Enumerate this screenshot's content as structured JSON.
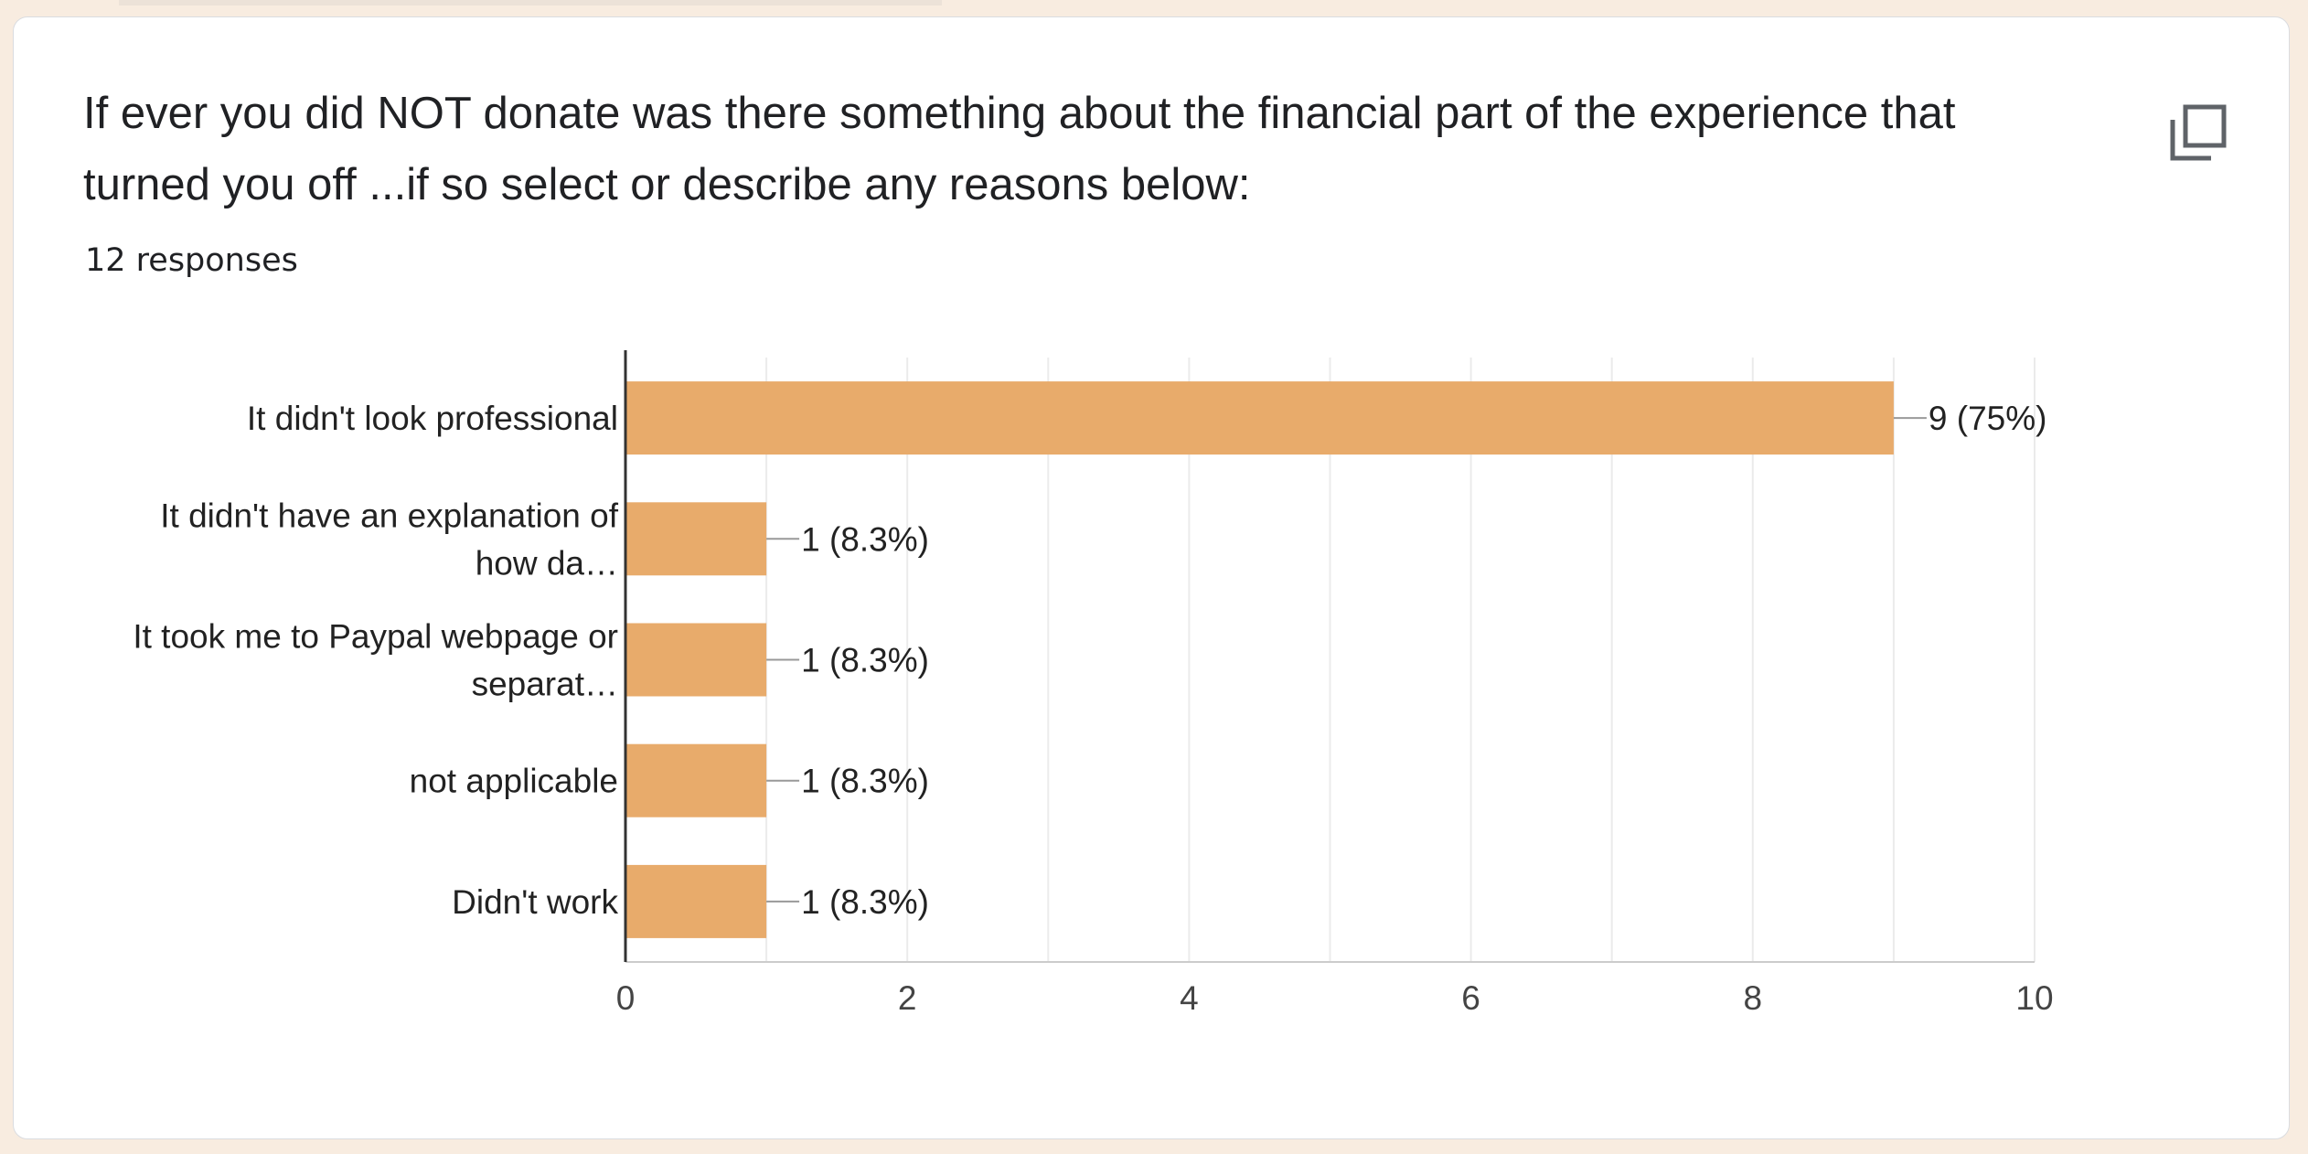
{
  "question": {
    "title": "If ever you did NOT donate was there something about the financial part of the experience that turned you off ...if so select or describe any reasons below:",
    "responses": "12 responses"
  },
  "icons": {
    "copy": "copy-icon"
  },
  "colors": {
    "bar": "#e8ab6b",
    "background": "#f8ece0"
  },
  "chart_data": {
    "type": "bar",
    "orientation": "horizontal",
    "categories": [
      [
        "It didn't look professional"
      ],
      [
        "It didn't have an explanation of",
        "how da…"
      ],
      [
        "It took me to Paypal webpage or",
        "separat…"
      ],
      [
        "not applicable"
      ],
      [
        "Didn't work"
      ]
    ],
    "values": [
      9,
      1,
      1,
      1,
      1
    ],
    "data_labels": [
      "9 (75%)",
      "1 (8.3%)",
      "1 (8.3%)",
      "1 (8.3%)",
      "1 (8.3%)"
    ],
    "xlim": [
      0,
      10
    ],
    "xticks": [
      0,
      2,
      4,
      6,
      8,
      10
    ],
    "grid": true
  }
}
